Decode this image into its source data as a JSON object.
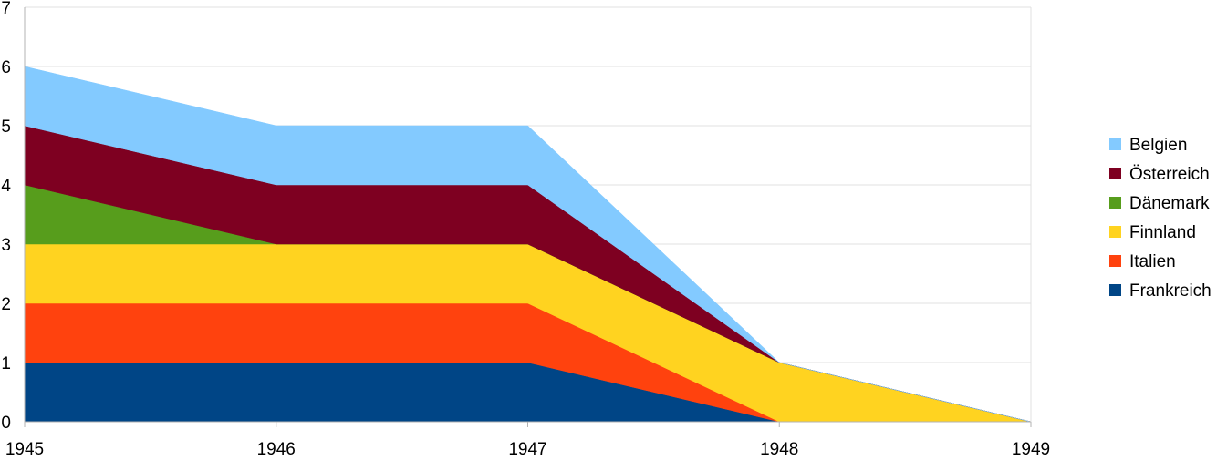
{
  "chart_data": {
    "type": "area",
    "stacked": true,
    "title": "",
    "xlabel": "",
    "ylabel": "",
    "x": [
      "1945",
      "1946",
      "1947",
      "1948",
      "1949"
    ],
    "ylim": [
      0,
      7
    ],
    "yticks": [
      "0",
      "1",
      "2",
      "3",
      "4",
      "5",
      "6",
      "7"
    ],
    "grid": true,
    "legend_position": "right",
    "series": [
      {
        "name": "Frankreich",
        "color": "#004586",
        "values": [
          1,
          1,
          1,
          0,
          0
        ]
      },
      {
        "name": "Italien",
        "color": "#ff420e",
        "values": [
          1,
          1,
          1,
          0,
          0
        ]
      },
      {
        "name": "Finnland",
        "color": "#ffd320",
        "values": [
          1,
          1,
          1,
          1,
          0
        ]
      },
      {
        "name": "Dänemark",
        "color": "#579d1c",
        "values": [
          1,
          0,
          0,
          0,
          0
        ]
      },
      {
        "name": "Österreich",
        "color": "#7e0021",
        "values": [
          1,
          1,
          1,
          0,
          0
        ]
      },
      {
        "name": "Belgien",
        "color": "#83caff",
        "values": [
          1,
          1,
          1,
          0,
          0
        ]
      }
    ],
    "legend_order": [
      "Belgien",
      "Österreich",
      "Dänemark",
      "Finnland",
      "Italien",
      "Frankreich"
    ]
  }
}
